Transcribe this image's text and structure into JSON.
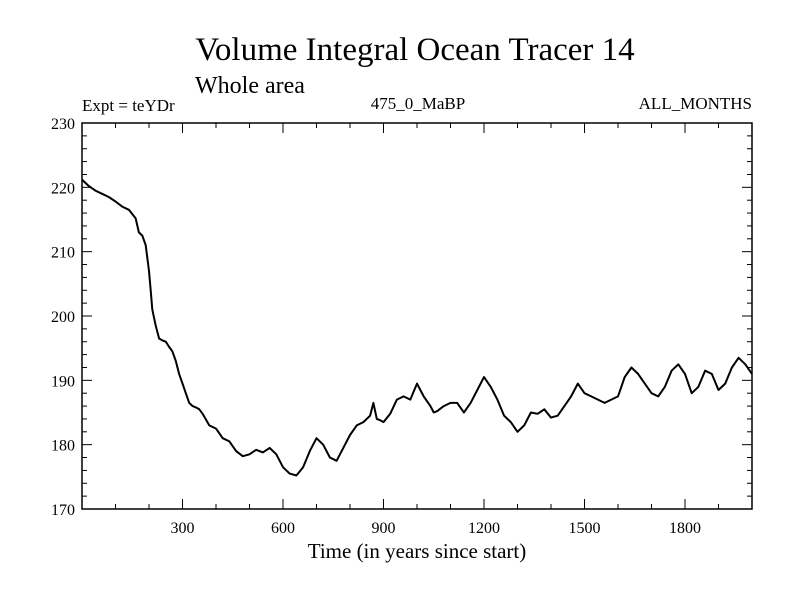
{
  "chart_data": {
    "type": "line",
    "title": "Volume Integral Ocean Tracer 14",
    "subtitle": "Whole area",
    "experiment_label": "Expt = teYDr",
    "center_label": "475_0_MaBP",
    "right_label": "ALL_MONTHS",
    "xlabel": "Time (in years since start)",
    "ylabel": "",
    "xlim": [
      0,
      2000
    ],
    "ylim": [
      170,
      230
    ],
    "x_ticks": [
      300,
      600,
      900,
      1200,
      1500,
      1800
    ],
    "y_ticks": [
      170,
      180,
      190,
      200,
      210,
      220,
      230
    ],
    "series": [
      {
        "name": "Tracer 14",
        "color": "#000000",
        "x": [
          0,
          20,
          40,
          60,
          80,
          100,
          120,
          140,
          160,
          170,
          180,
          190,
          200,
          205,
          210,
          220,
          230,
          240,
          250,
          260,
          270,
          280,
          290,
          300,
          310,
          320,
          330,
          340,
          350,
          360,
          380,
          400,
          420,
          440,
          460,
          480,
          500,
          520,
          540,
          560,
          580,
          600,
          620,
          640,
          660,
          680,
          700,
          720,
          740,
          760,
          780,
          800,
          820,
          840,
          860,
          870,
          880,
          890,
          900,
          920,
          940,
          960,
          980,
          1000,
          1020,
          1040,
          1050,
          1060,
          1080,
          1100,
          1120,
          1140,
          1160,
          1180,
          1200,
          1220,
          1240,
          1260,
          1270,
          1280,
          1300,
          1320,
          1340,
          1360,
          1380,
          1400,
          1420,
          1440,
          1460,
          1480,
          1500,
          1520,
          1540,
          1560,
          1580,
          1600,
          1620,
          1640,
          1660,
          1680,
          1700,
          1720,
          1740,
          1760,
          1780,
          1800,
          1820,
          1840,
          1860,
          1880,
          1900,
          1920,
          1940,
          1960,
          1980,
          2000
        ],
        "values": [
          221.2,
          220.2,
          219.5,
          219.0,
          218.5,
          217.8,
          217.0,
          216.5,
          215.2,
          213.0,
          212.5,
          211.0,
          207.0,
          204.0,
          201.0,
          198.5,
          196.5,
          196.2,
          196.0,
          195.2,
          194.5,
          193.0,
          191.0,
          189.5,
          188.0,
          186.5,
          186.0,
          185.8,
          185.5,
          184.8,
          183.0,
          182.5,
          181.0,
          180.5,
          179.0,
          178.2,
          178.5,
          179.2,
          178.8,
          179.5,
          178.5,
          176.5,
          175.5,
          175.2,
          176.5,
          179.0,
          181.0,
          180.0,
          178.0,
          177.5,
          179.5,
          181.5,
          183.0,
          183.5,
          184.5,
          186.5,
          184.0,
          183.8,
          183.5,
          184.8,
          187.0,
          187.5,
          187.0,
          189.5,
          187.5,
          186.0,
          185.0,
          185.2,
          186.0,
          186.5,
          186.5,
          185.0,
          186.5,
          188.5,
          190.5,
          189.0,
          187.0,
          184.5,
          184.0,
          183.5,
          182.0,
          183.0,
          185.0,
          184.8,
          185.5,
          184.2,
          184.5,
          186.0,
          187.5,
          189.5,
          188.0,
          187.5,
          187.0,
          186.5,
          187.0,
          187.5,
          190.5,
          192.0,
          191.0,
          189.5,
          188.0,
          187.5,
          189.0,
          191.5,
          192.5,
          191.0,
          188.0,
          189.0,
          191.5,
          191.0,
          188.5,
          189.5,
          192.0,
          193.5,
          192.5,
          191.0
        ]
      }
    ]
  }
}
